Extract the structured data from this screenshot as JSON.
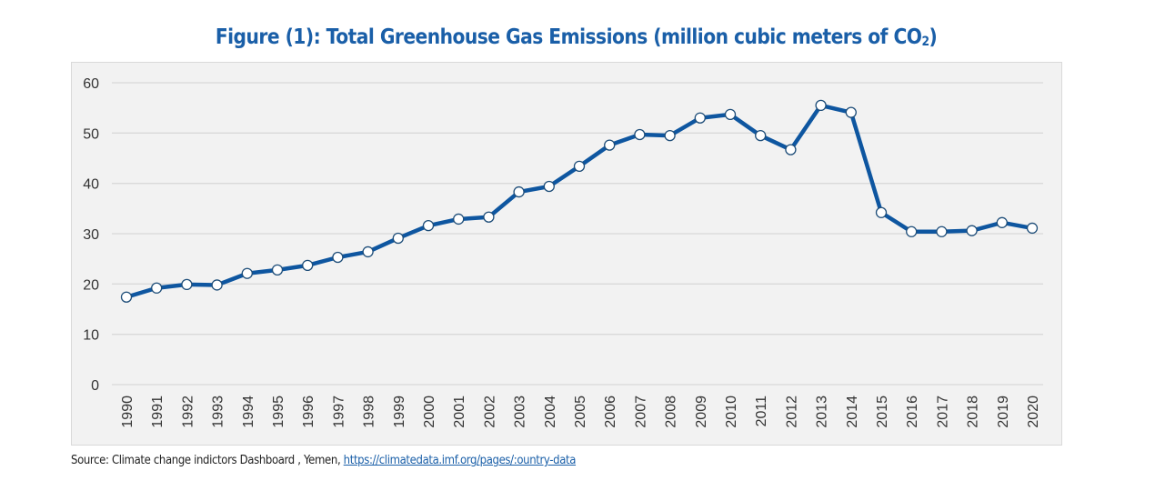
{
  "chart_data": {
    "type": "line",
    "title": "Figure (1): Total Greenhouse Gas Emissions (million cubic meters of CO",
    "title_subscript": "2",
    "title_suffix": ")",
    "xlabel": "",
    "ylabel": "",
    "ylim": [
      0,
      60
    ],
    "yticks": [
      0,
      10,
      20,
      30,
      40,
      50,
      60
    ],
    "grid": true,
    "legend": "none",
    "x": [
      "1990",
      "1991",
      "1992",
      "1993",
      "1994",
      "1995",
      "1996",
      "1997",
      "1998",
      "1999",
      "2000",
      "2001",
      "2002",
      "2003",
      "2004",
      "2005",
      "2006",
      "2007",
      "2008",
      "2009",
      "2010",
      "2011",
      "2012",
      "2013",
      "2014",
      "2015",
      "2016",
      "2017",
      "2018",
      "2019",
      "2020"
    ],
    "series": [
      {
        "name": "Total Greenhouse Gas Emissions",
        "color": "#0e56a0",
        "marker": "circle-white",
        "values": [
          17.4,
          19.2,
          19.9,
          19.8,
          22.1,
          22.8,
          23.7,
          25.3,
          26.4,
          29.1,
          31.6,
          32.9,
          33.3,
          38.3,
          39.4,
          43.4,
          47.6,
          49.7,
          49.5,
          53.0,
          53.7,
          49.5,
          46.7,
          55.5,
          54.1,
          34.2,
          30.4,
          30.4,
          30.6,
          32.2,
          31.1
        ]
      }
    ]
  },
  "source": {
    "text": "Source: Climate change indictors Dashboard , Yemen, ",
    "link": "https://climatedata.imf.org/pages/:ountry-data"
  },
  "colors": {
    "title": "#1a5fa8",
    "line": "#0e56a0",
    "plot_background": "#f2f2f2",
    "gridline": "#d9d9d9"
  }
}
